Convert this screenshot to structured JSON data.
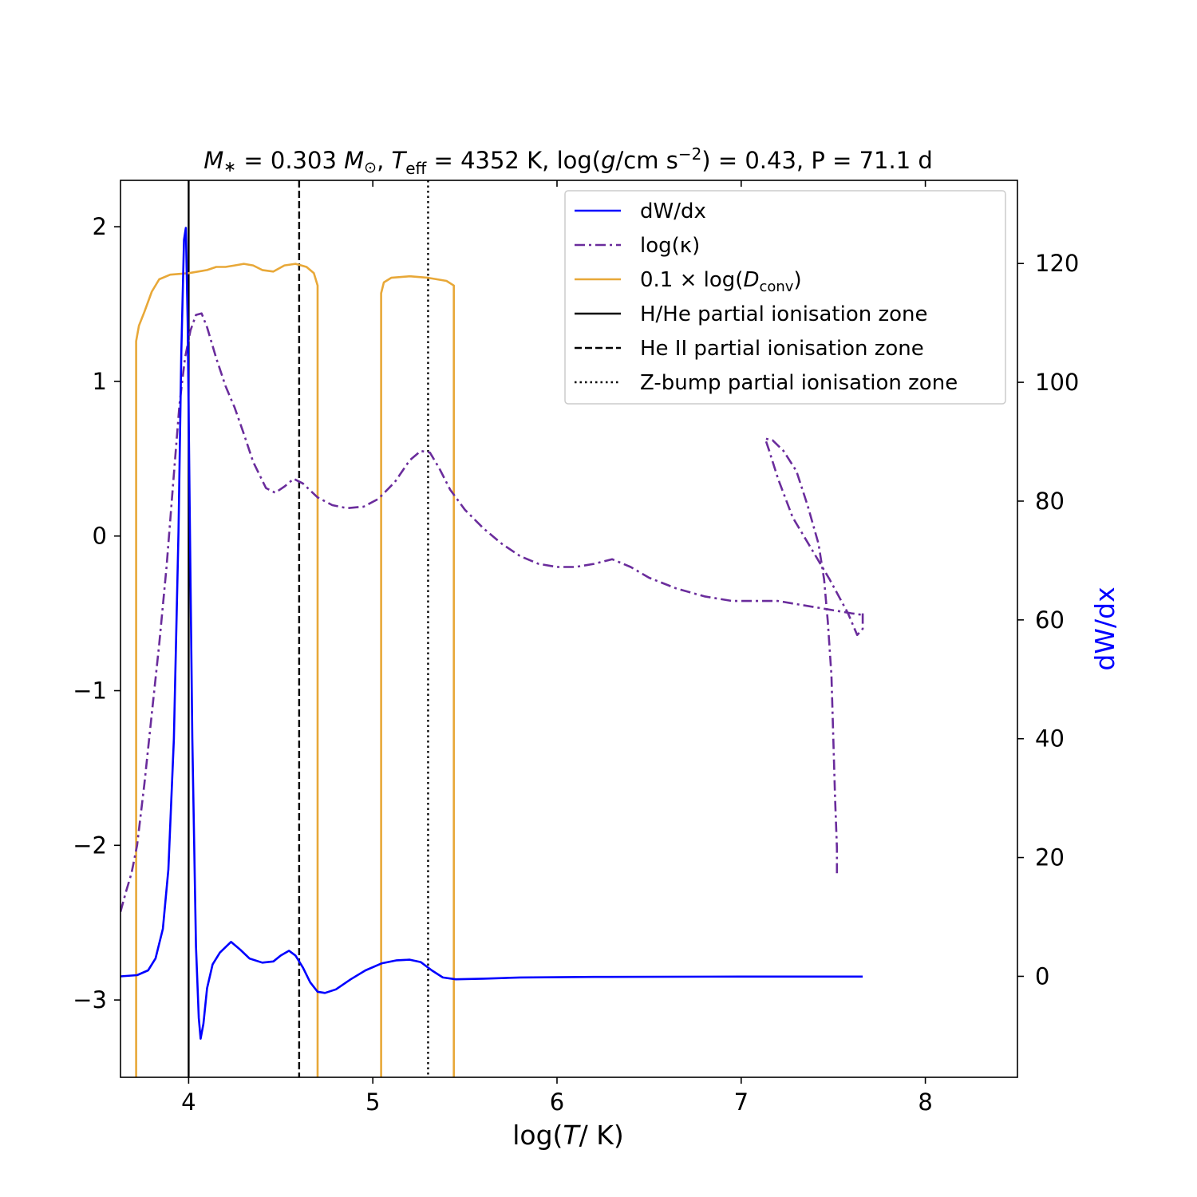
{
  "chart_data": {
    "type": "line",
    "title": "M* = 0.303 M⊙,   Teff = 4352 K,   log(g/cm s−2) = 0.43,   P = 71.1 d",
    "title_parts": {
      "mass_sym": "M",
      "mass_sub": "∗",
      "mass_eq": " = 0.303 ",
      "msun_sym": "M",
      "msun_sub": "⊙",
      "teff_sym": "T",
      "teff_sub": "eff",
      "teff_eq": " = 4352 K,",
      "logg_pre": "log(",
      "logg_g": "g",
      "logg_unit": "/cm s",
      "logg_sup": "−2",
      "logg_eq": ") = 0.43,",
      "period": "P = 71.1 d"
    },
    "xlabel": "log(T/ K)",
    "xlabel_parts": {
      "pre": "log(",
      "sym": "T",
      "post": "/ K)"
    },
    "ylabel": "",
    "y2label": "dW/dx",
    "y2label_color": "#0000ff",
    "xlim": [
      3.63,
      8.5
    ],
    "ylim": [
      -3.5,
      2.3
    ],
    "y2lim": [
      -17,
      134
    ],
    "xticks": [
      4,
      5,
      6,
      7,
      8
    ],
    "xtick_labels": [
      "4",
      "5",
      "6",
      "7",
      "8"
    ],
    "yticks": [
      -3,
      -2,
      -1,
      0,
      1,
      2
    ],
    "ytick_labels": [
      "−3",
      "−2",
      "−1",
      "0",
      "1",
      "2"
    ],
    "y2ticks": [
      0,
      20,
      40,
      60,
      80,
      100,
      120
    ],
    "y2tick_labels": [
      "0",
      "20",
      "40",
      "60",
      "80",
      "100",
      "120"
    ],
    "x2ticks": [
      4,
      5,
      6,
      7,
      8
    ],
    "grid": false,
    "legend_position": "top-right",
    "legend": [
      {
        "label": "dW/dx",
        "color": "#0000ff",
        "style": "solid"
      },
      {
        "label": "log(κ)",
        "color": "#6a2c9c",
        "style": "dashdot"
      },
      {
        "label": "0.1 × log(Dconv)",
        "label_pre": "0.1 × log(",
        "label_sym": "D",
        "label_sub": "conv",
        "label_post": ")",
        "color": "#e8a838",
        "style": "solid"
      },
      {
        "label": "H/He partial ionisation zone",
        "color": "#000000",
        "style": "solid"
      },
      {
        "label": "He II partial ionisation zone",
        "color": "#000000",
        "style": "dashed"
      },
      {
        "label": "Z-bump partial ionisation zone",
        "color": "#000000",
        "style": "dotted"
      }
    ],
    "series": [
      {
        "name": "dW/dx",
        "axis": "right",
        "color": "#0000ff",
        "style": "solid",
        "points": [
          [
            3.63,
            0.0
          ],
          [
            3.72,
            0.2
          ],
          [
            3.78,
            1.0
          ],
          [
            3.82,
            3.0
          ],
          [
            3.86,
            8.0
          ],
          [
            3.89,
            18.0
          ],
          [
            3.92,
            40.0
          ],
          [
            3.945,
            75.0
          ],
          [
            3.96,
            105.0
          ],
          [
            3.975,
            124.0
          ],
          [
            3.985,
            126.0
          ],
          [
            3.995,
            110.0
          ],
          [
            4.005,
            80.0
          ],
          [
            4.02,
            40.0
          ],
          [
            4.04,
            5.0
          ],
          [
            4.055,
            -7.0
          ],
          [
            4.065,
            -10.5
          ],
          [
            4.08,
            -8.0
          ],
          [
            4.1,
            -2.0
          ],
          [
            4.13,
            2.0
          ],
          [
            4.17,
            4.0
          ],
          [
            4.23,
            5.8
          ],
          [
            4.28,
            4.5
          ],
          [
            4.33,
            3.0
          ],
          [
            4.4,
            2.3
          ],
          [
            4.46,
            2.5
          ],
          [
            4.5,
            3.5
          ],
          [
            4.545,
            4.3
          ],
          [
            4.58,
            3.5
          ],
          [
            4.62,
            1.5
          ],
          [
            4.66,
            -1.0
          ],
          [
            4.7,
            -2.6
          ],
          [
            4.74,
            -2.8
          ],
          [
            4.8,
            -2.2
          ],
          [
            4.88,
            -0.5
          ],
          [
            4.96,
            1.0
          ],
          [
            5.05,
            2.2
          ],
          [
            5.13,
            2.7
          ],
          [
            5.2,
            2.8
          ],
          [
            5.26,
            2.4
          ],
          [
            5.32,
            1.0
          ],
          [
            5.38,
            -0.2
          ],
          [
            5.45,
            -0.5
          ],
          [
            5.6,
            -0.4
          ],
          [
            5.8,
            -0.2
          ],
          [
            6.2,
            -0.1
          ],
          [
            7.0,
            -0.05
          ],
          [
            7.66,
            -0.05
          ]
        ]
      },
      {
        "name": "log(κ)",
        "axis": "left",
        "color": "#6a2c9c",
        "style": "dashdot",
        "segments": [
          [
            [
              3.63,
              -2.43
            ],
            [
              3.66,
              -2.3
            ],
            [
              3.69,
              -2.18
            ],
            [
              3.72,
              -2.0
            ],
            [
              3.76,
              -1.6
            ],
            [
              3.8,
              -1.15
            ],
            [
              3.84,
              -0.7
            ],
            [
              3.88,
              -0.2
            ],
            [
              3.92,
              0.4
            ],
            [
              3.95,
              0.85
            ],
            [
              3.98,
              1.15
            ],
            [
              4.01,
              1.33
            ],
            [
              4.04,
              1.43
            ],
            [
              4.07,
              1.44
            ],
            [
              4.1,
              1.35
            ],
            [
              4.15,
              1.15
            ],
            [
              4.2,
              0.97
            ],
            [
              4.25,
              0.83
            ],
            [
              4.3,
              0.66
            ],
            [
              4.35,
              0.48
            ],
            [
              4.42,
              0.31
            ],
            [
              4.47,
              0.28
            ],
            [
              4.52,
              0.32
            ],
            [
              4.57,
              0.37
            ],
            [
              4.62,
              0.34
            ],
            [
              4.7,
              0.25
            ],
            [
              4.78,
              0.2
            ],
            [
              4.86,
              0.18
            ],
            [
              4.95,
              0.19
            ],
            [
              5.03,
              0.24
            ],
            [
              5.12,
              0.35
            ],
            [
              5.2,
              0.49
            ],
            [
              5.26,
              0.55
            ],
            [
              5.31,
              0.54
            ],
            [
              5.36,
              0.44
            ],
            [
              5.42,
              0.3
            ],
            [
              5.5,
              0.17
            ],
            [
              5.6,
              0.05
            ],
            [
              5.7,
              -0.05
            ],
            [
              5.8,
              -0.13
            ],
            [
              5.9,
              -0.18
            ],
            [
              6.0,
              -0.2
            ],
            [
              6.1,
              -0.2
            ],
            [
              6.2,
              -0.18
            ],
            [
              6.3,
              -0.15
            ],
            [
              6.4,
              -0.2
            ],
            [
              6.5,
              -0.27
            ],
            [
              6.65,
              -0.34
            ],
            [
              6.8,
              -0.39
            ],
            [
              6.95,
              -0.42
            ],
            [
              7.1,
              -0.42
            ],
            [
              7.2,
              -0.42
            ],
            [
              7.3,
              -0.44
            ],
            [
              7.45,
              -0.47
            ],
            [
              7.6,
              -0.5
            ],
            [
              7.66,
              -0.51
            ]
          ],
          [
            [
              7.66,
              -0.5
            ],
            [
              7.66,
              -0.6
            ],
            [
              7.63,
              -0.64
            ],
            [
              7.58,
              -0.5
            ],
            [
              7.48,
              -0.28
            ],
            [
              7.38,
              -0.08
            ],
            [
              7.28,
              0.12
            ],
            [
              7.2,
              0.37
            ],
            [
              7.15,
              0.56
            ],
            [
              7.13,
              0.63
            ],
            [
              7.17,
              0.62
            ],
            [
              7.23,
              0.55
            ],
            [
              7.3,
              0.42
            ],
            [
              7.36,
              0.2
            ],
            [
              7.42,
              -0.05
            ],
            [
              7.45,
              -0.28
            ],
            [
              7.47,
              -0.55
            ],
            [
              7.49,
              -0.9
            ],
            [
              7.5,
              -1.3
            ],
            [
              7.51,
              -1.7
            ],
            [
              7.52,
              -2.02
            ],
            [
              7.52,
              -2.18
            ]
          ]
        ]
      },
      {
        "name": "0.1 × log(Dconv)",
        "axis": "left",
        "color": "#e8a838",
        "style": "solid",
        "segments": [
          [
            [
              3.715,
              -3.5
            ],
            [
              3.715,
              1.26
            ],
            [
              3.73,
              1.36
            ],
            [
              3.76,
              1.45
            ],
            [
              3.8,
              1.58
            ],
            [
              3.84,
              1.66
            ],
            [
              3.9,
              1.69
            ],
            [
              4.0,
              1.7
            ],
            [
              4.1,
              1.72
            ],
            [
              4.15,
              1.74
            ],
            [
              4.2,
              1.74
            ],
            [
              4.25,
              1.75
            ],
            [
              4.3,
              1.76
            ],
            [
              4.35,
              1.75
            ],
            [
              4.4,
              1.72
            ],
            [
              4.46,
              1.71
            ],
            [
              4.52,
              1.75
            ],
            [
              4.58,
              1.76
            ],
            [
              4.64,
              1.74
            ],
            [
              4.68,
              1.7
            ],
            [
              4.7,
              1.62
            ],
            [
              4.7,
              -3.5
            ]
          ],
          [
            [
              5.045,
              -3.5
            ],
            [
              5.045,
              1.57
            ],
            [
              5.06,
              1.64
            ],
            [
              5.1,
              1.67
            ],
            [
              5.2,
              1.68
            ],
            [
              5.3,
              1.67
            ],
            [
              5.4,
              1.65
            ],
            [
              5.44,
              1.62
            ],
            [
              5.44,
              -3.5
            ]
          ]
        ]
      }
    ],
    "reference_lines": [
      {
        "name": "H/He partial ionisation zone",
        "x": 4.0,
        "style": "solid"
      },
      {
        "name": "He II partial ionisation zone",
        "x": 4.6,
        "style": "dashed"
      },
      {
        "name": "Z-bump partial ionisation zone",
        "x": 5.3,
        "style": "dotted"
      }
    ]
  }
}
